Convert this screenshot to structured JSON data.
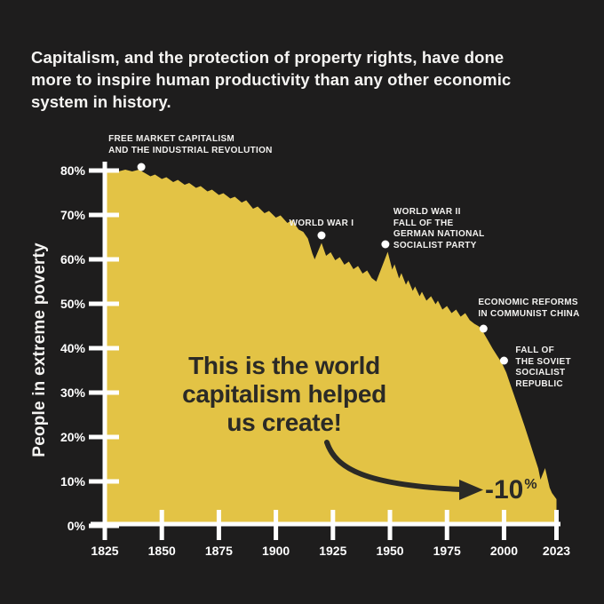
{
  "header": {
    "title_lines": [
      "Capitalism, and the protection of property rights, have done",
      "more to inspire human productivity than any other economic",
      "system in history."
    ]
  },
  "colors": {
    "background": "#1e1d1d",
    "area_yellow": "#e3c345",
    "ink_dark": "#2b2a26",
    "axis_white": "#ffffff"
  },
  "chart_data": {
    "type": "area",
    "ylabel": "People in extreme poverty",
    "xlabel": "",
    "grid": false,
    "legend": "none",
    "xlim": [
      1825,
      2023
    ],
    "ylim": [
      0,
      80
    ],
    "x_ticks": [
      {
        "year": 1825,
        "label": "1825"
      },
      {
        "year": 1850,
        "label": "1850"
      },
      {
        "year": 1875,
        "label": "1875"
      },
      {
        "year": 1900,
        "label": "1900"
      },
      {
        "year": 1925,
        "label": "1925"
      },
      {
        "year": 1950,
        "label": "1950"
      },
      {
        "year": 1975,
        "label": "1975"
      },
      {
        "year": 2000,
        "label": "2000"
      },
      {
        "year": 2023,
        "label": "2023"
      }
    ],
    "y_ticks": [
      {
        "value": 0,
        "label": "0%"
      },
      {
        "value": 10,
        "label": "10%"
      },
      {
        "value": 20,
        "label": "20%"
      },
      {
        "value": 30,
        "label": "30%"
      },
      {
        "value": 40,
        "label": "40%"
      },
      {
        "value": 50,
        "label": "50%"
      },
      {
        "value": 60,
        "label": "60%"
      },
      {
        "value": 70,
        "label": "70%"
      },
      {
        "value": 80,
        "label": "80%"
      }
    ],
    "series": [
      {
        "name": "Share of people in extreme poverty",
        "points": [
          [
            1825,
            79.9
          ],
          [
            1828,
            80.3
          ],
          [
            1831,
            79.8
          ],
          [
            1834,
            80.2
          ],
          [
            1837,
            79.8
          ],
          [
            1840,
            80.2
          ],
          [
            1842,
            79.6
          ],
          [
            1845,
            78.7
          ],
          [
            1847,
            79.1
          ],
          [
            1850,
            78.1
          ],
          [
            1852,
            78.5
          ],
          [
            1855,
            77.4
          ],
          [
            1857,
            77.9
          ],
          [
            1860,
            76.8
          ],
          [
            1862,
            77.2
          ],
          [
            1865,
            76.1
          ],
          [
            1867,
            76.5
          ],
          [
            1870,
            75.3
          ],
          [
            1872,
            75.7
          ],
          [
            1875,
            74.5
          ],
          [
            1877,
            74.9
          ],
          [
            1880,
            73.7
          ],
          [
            1882,
            74.1
          ],
          [
            1885,
            72.8
          ],
          [
            1887,
            73.3
          ],
          [
            1890,
            71.4
          ],
          [
            1892,
            71.9
          ],
          [
            1895,
            70.4
          ],
          [
            1897,
            70.9
          ],
          [
            1900,
            69.4
          ],
          [
            1902,
            69.9
          ],
          [
            1905,
            68.2
          ],
          [
            1907,
            68.8
          ],
          [
            1910,
            66.7
          ],
          [
            1912,
            66.2
          ],
          [
            1914,
            64.7
          ],
          [
            1916,
            61.3
          ],
          [
            1917,
            60.0
          ],
          [
            1920,
            63.7
          ],
          [
            1922,
            60.8
          ],
          [
            1924,
            61.6
          ],
          [
            1926,
            59.8
          ],
          [
            1928,
            60.5
          ],
          [
            1930,
            58.8
          ],
          [
            1932,
            59.5
          ],
          [
            1934,
            57.8
          ],
          [
            1936,
            58.5
          ],
          [
            1938,
            56.8
          ],
          [
            1940,
            57.5
          ],
          [
            1942,
            55.8
          ],
          [
            1944,
            55.0
          ],
          [
            1949,
            61.7
          ],
          [
            1951,
            57.7
          ],
          [
            1952,
            58.9
          ],
          [
            1954,
            55.7
          ],
          [
            1955,
            56.9
          ],
          [
            1957,
            54.3
          ],
          [
            1958,
            55.3
          ],
          [
            1960,
            52.9
          ],
          [
            1961,
            53.9
          ],
          [
            1963,
            51.7
          ],
          [
            1964,
            52.7
          ],
          [
            1966,
            50.7
          ],
          [
            1968,
            51.7
          ],
          [
            1970,
            49.9
          ],
          [
            1971,
            50.7
          ],
          [
            1973,
            48.7
          ],
          [
            1975,
            49.5
          ],
          [
            1977,
            47.9
          ],
          [
            1979,
            48.7
          ],
          [
            1981,
            47.1
          ],
          [
            1983,
            47.9
          ],
          [
            1985,
            46.3
          ],
          [
            1987,
            45.5
          ],
          [
            1989,
            44.9
          ],
          [
            1990,
            44.1
          ],
          [
            1991,
            43.5
          ],
          [
            1993,
            41.7
          ],
          [
            1995,
            39.9
          ],
          [
            1997,
            38.3
          ],
          [
            1999,
            36.7
          ],
          [
            2001,
            34.5
          ],
          [
            2003,
            31.5
          ],
          [
            2005,
            28.5
          ],
          [
            2007,
            25.5
          ],
          [
            2009,
            22.5
          ],
          [
            2011,
            19.3
          ],
          [
            2013,
            16.1
          ],
          [
            2015,
            12.9
          ],
          [
            2016,
            10.4
          ],
          [
            2018,
            13.0
          ],
          [
            2020,
            8.6
          ],
          [
            2021,
            7.4
          ],
          [
            2023,
            6.0
          ]
        ]
      }
    ],
    "annotations": [
      {
        "id": "free-market-capitalism",
        "lines": [
          "FREE MARKET CAPITALISM",
          "AND THE INDUSTRIAL REVOLUTION"
        ],
        "year": 1841,
        "value": 80.8
      },
      {
        "id": "world-war-1",
        "lines": [
          "WORLD WAR I"
        ],
        "year": 1920,
        "value": 65.4
      },
      {
        "id": "world-war-2",
        "lines": [
          "WORLD WAR II",
          "FALL OF THE",
          "GERMAN NATIONAL",
          "SOCIALIST PARTY"
        ],
        "year": 1948,
        "value": 63.4
      },
      {
        "id": "china-reforms",
        "lines": [
          "ECONOMIC REFORMS",
          "IN COMMUNIST CHINA"
        ],
        "year": 1991,
        "value": 44.4
      },
      {
        "id": "soviet-fall",
        "lines": [
          "FALL OF",
          "THE SOVIET",
          "SOCIALIST",
          "REPUBLIC"
        ],
        "year": 2000,
        "value": 37.2
      }
    ],
    "overlay": {
      "message_lines": [
        "This is the world",
        "capitalism helped",
        "us create!"
      ],
      "callout_value": "-10",
      "callout_unit": "%"
    }
  }
}
